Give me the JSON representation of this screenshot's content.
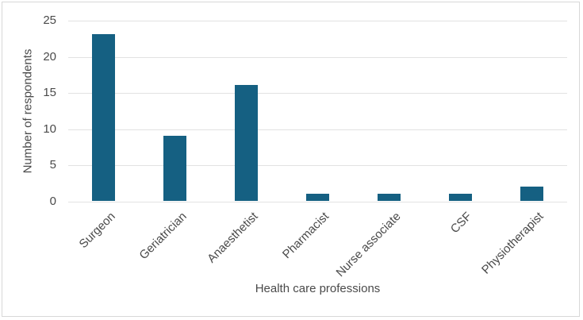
{
  "chart_data": {
    "type": "bar",
    "categories": [
      "Surgeon",
      "Geriatrician",
      "Anaesthetist",
      "Pharmacist",
      "Nurse associate",
      "CSF",
      "Physiotherapist"
    ],
    "values": [
      23,
      9,
      16,
      1,
      1,
      1,
      2
    ],
    "xlabel": "Health care professions",
    "ylabel": "Number of respondents",
    "ylim": [
      0,
      25
    ],
    "yticks": [
      0,
      5,
      10,
      15,
      20,
      25
    ],
    "grid": true,
    "legend_position": "none",
    "bar_color": "#156082",
    "gridline_color": "#e2e2e2",
    "text_color": "#4a4a4a"
  }
}
